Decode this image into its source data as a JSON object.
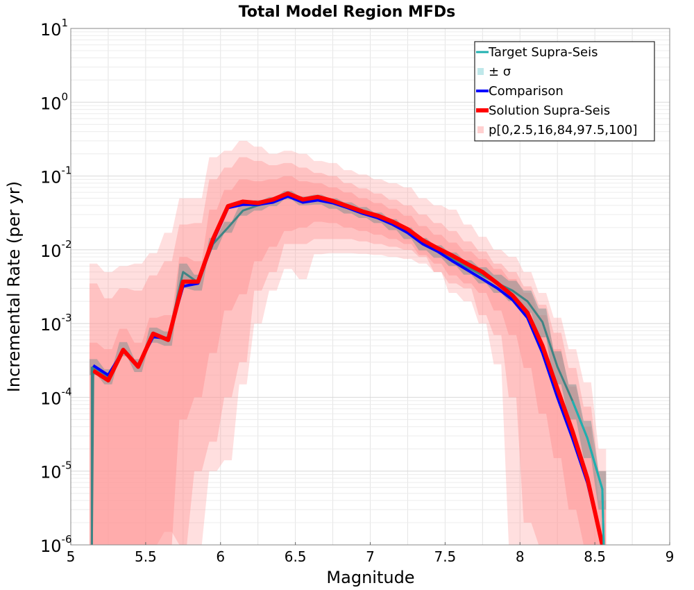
{
  "chart_data": {
    "type": "line",
    "title": "Total Model Region MFDs",
    "xlabel": "Magnitude",
    "ylabel": "Incremental Rate (per yr)",
    "xlim": [
      5,
      9
    ],
    "ylim": [
      1e-06,
      10
    ],
    "yscale": "log",
    "grid": true,
    "legend_position": "top-right",
    "x_ticks": [
      5,
      5.5,
      6,
      6.5,
      7,
      7.5,
      8,
      8.5,
      9
    ],
    "x_tick_labels": [
      "5",
      "5.5",
      "6",
      "6.5",
      "7",
      "7.5",
      "8",
      "8.5",
      "9"
    ],
    "y_ticks": [
      {
        "value": 1e-06,
        "base": "10",
        "exp": "-6"
      },
      {
        "value": 1e-05,
        "base": "10",
        "exp": "-5"
      },
      {
        "value": 0.0001,
        "base": "10",
        "exp": "-4"
      },
      {
        "value": 0.001,
        "base": "10",
        "exp": "-3"
      },
      {
        "value": 0.01,
        "base": "10",
        "exp": "-2"
      },
      {
        "value": 0.1,
        "base": "10",
        "exp": "-1"
      },
      {
        "value": 1,
        "base": "10",
        "exp": "0"
      },
      {
        "value": 10,
        "base": "10",
        "exp": "1"
      }
    ],
    "x": [
      5.15,
      5.25,
      5.35,
      5.45,
      5.55,
      5.65,
      5.75,
      5.85,
      5.95,
      6.05,
      6.15,
      6.25,
      6.35,
      6.45,
      6.55,
      6.65,
      6.75,
      6.85,
      6.95,
      7.05,
      7.15,
      7.25,
      7.35,
      7.45,
      7.55,
      7.65,
      7.75,
      7.85,
      7.95,
      8.05,
      8.15,
      8.25,
      8.35,
      8.45,
      8.55
    ],
    "series": [
      {
        "name": "Target Supra-Seis",
        "color": "#1fb0b0",
        "width": 3,
        "values": [
          0.00026,
          0.00019,
          0.00045,
          0.00027,
          0.0007,
          0.00063,
          0.005,
          0.0036,
          0.012,
          0.02,
          0.034,
          0.04,
          0.045,
          0.055,
          0.046,
          0.048,
          0.043,
          0.037,
          0.032,
          0.027,
          0.022,
          0.017,
          0.012,
          0.0095,
          0.0075,
          0.0058,
          0.0045,
          0.0035,
          0.0028,
          0.002,
          0.00105,
          0.00026,
          9e-05,
          2.8e-05,
          5.7e-06
        ],
        "drop_start_to": 1e-06,
        "drop_end_to": 1e-06
      },
      {
        "name": "Comparison",
        "color": "#0000ff",
        "width": 4,
        "values": [
          0.00027,
          0.0002,
          0.00043,
          0.00027,
          0.00066,
          0.00063,
          0.0032,
          0.0035,
          0.013,
          0.037,
          0.041,
          0.041,
          0.044,
          0.053,
          0.044,
          0.047,
          0.043,
          0.037,
          0.031,
          0.027,
          0.022,
          0.017,
          0.012,
          0.0095,
          0.007,
          0.0053,
          0.004,
          0.003,
          0.0021,
          0.0012,
          0.0004,
          0.0001,
          2.8e-05,
          7e-06,
          1e-06
        ]
      },
      {
        "name": "Solution Supra-Seis",
        "color": "#ff0000",
        "width": 6,
        "values": [
          0.00023,
          0.00017,
          0.00044,
          0.00026,
          0.00073,
          0.0006,
          0.0037,
          0.0037,
          0.014,
          0.039,
          0.045,
          0.043,
          0.048,
          0.058,
          0.048,
          0.052,
          0.046,
          0.039,
          0.033,
          0.029,
          0.024,
          0.019,
          0.0135,
          0.0105,
          0.0083,
          0.0064,
          0.005,
          0.0035,
          0.0024,
          0.0014,
          0.0005,
          0.00013,
          3.5e-05,
          8e-06,
          1e-06
        ]
      }
    ],
    "sigma_band": {
      "name": "± σ",
      "color": "#bfe8ea",
      "lower": [
        0.0002,
        0.00015,
        0.00036,
        0.00022,
        0.00055,
        0.0005,
        0.003,
        0.0028,
        0.01,
        0.017,
        0.029,
        0.034,
        0.039,
        0.048,
        0.04,
        0.041,
        0.036,
        0.031,
        0.027,
        0.023,
        0.0185,
        0.014,
        0.0098,
        0.0078,
        0.006,
        0.0046,
        0.0035,
        0.0026,
        0.002,
        0.0014,
        0.00065,
        0.00015,
        5e-05,
        1.5e-05,
        3e-06
      ],
      "upper": [
        0.00033,
        0.00024,
        0.00056,
        0.00033,
        0.00088,
        0.00078,
        0.0065,
        0.0046,
        0.0145,
        0.024,
        0.04,
        0.047,
        0.052,
        0.063,
        0.053,
        0.056,
        0.05,
        0.044,
        0.038,
        0.032,
        0.026,
        0.02,
        0.0145,
        0.0115,
        0.0092,
        0.0072,
        0.0058,
        0.0046,
        0.0038,
        0.0028,
        0.0016,
        0.00042,
        0.00015,
        4.8e-05,
        1e-05
      ]
    },
    "percentile_bands": {
      "name": "p[0,2.5,16,84,97.5,100]",
      "color": "#ff9a9a",
      "bands": [
        {
          "label": "p0-p100",
          "opacity": 0.32,
          "lower": [
            1e-06,
            1e-06,
            1e-06,
            1e-06,
            1e-06,
            1e-06,
            1e-06,
            1e-06,
            1e-05,
            1.4e-05,
            0.00015,
            0.001,
            0.0028,
            0.0055,
            0.004,
            0.0087,
            0.009,
            0.009,
            0.0088,
            0.0085,
            0.008,
            0.0075,
            0.0065,
            0.005,
            0.0026,
            0.002,
            0.001,
            0.00028,
            1e-06,
            1e-06,
            1e-06,
            1e-06,
            1e-06,
            1e-06,
            1e-06
          ],
          "upper": [
            0.0065,
            0.005,
            0.006,
            0.0065,
            0.009,
            0.017,
            0.05,
            0.05,
            0.18,
            0.22,
            0.3,
            0.25,
            0.2,
            0.22,
            0.2,
            0.16,
            0.15,
            0.12,
            0.105,
            0.09,
            0.08,
            0.07,
            0.05,
            0.04,
            0.035,
            0.022,
            0.015,
            0.01,
            0.008,
            0.005,
            0.0026,
            0.0012,
            0.00045,
            0.00016,
            2e-05
          ]
        },
        {
          "label": "p2.5-p97.5",
          "opacity": 0.42,
          "lower": [
            1e-06,
            1e-06,
            1e-06,
            1e-06,
            1e-06,
            1.5e-06,
            1e-06,
            1e-05,
            2.5e-05,
            0.0001,
            0.0003,
            0.0028,
            0.005,
            0.012,
            0.012,
            0.014,
            0.014,
            0.014,
            0.013,
            0.012,
            0.011,
            0.01,
            0.008,
            0.005,
            0.0035,
            0.003,
            0.0013,
            0.0007,
            0.0001,
            2e-06,
            1e-06,
            1e-06,
            1e-06,
            1e-06,
            1e-06
          ],
          "upper": [
            0.0035,
            0.0022,
            0.003,
            0.0028,
            0.0045,
            0.007,
            0.022,
            0.023,
            0.09,
            0.13,
            0.18,
            0.16,
            0.14,
            0.15,
            0.13,
            0.11,
            0.1,
            0.08,
            0.068,
            0.058,
            0.048,
            0.04,
            0.03,
            0.023,
            0.018,
            0.013,
            0.0095,
            0.0065,
            0.005,
            0.0032,
            0.0018,
            0.00075,
            0.00025,
            7.5e-05,
            1e-05
          ]
        },
        {
          "label": "p16-p84",
          "opacity": 0.55,
          "lower": [
            1e-06,
            1e-06,
            1e-06,
            1e-06,
            1e-06,
            1e-06,
            5e-05,
            0.0001,
            0.0004,
            0.0015,
            0.0025,
            0.007,
            0.011,
            0.018,
            0.02,
            0.024,
            0.023,
            0.02,
            0.018,
            0.016,
            0.014,
            0.012,
            0.0085,
            0.0065,
            0.0045,
            0.0035,
            0.0026,
            0.0015,
            0.0007,
            0.00025,
            6e-05,
            1.5e-05,
            3e-06,
            1e-06,
            1e-06
          ],
          "upper": [
            0.00055,
            0.00045,
            0.00085,
            0.00055,
            0.0012,
            0.0013,
            0.008,
            0.007,
            0.035,
            0.065,
            0.09,
            0.085,
            0.09,
            0.1,
            0.085,
            0.08,
            0.07,
            0.06,
            0.05,
            0.043,
            0.036,
            0.029,
            0.021,
            0.016,
            0.0125,
            0.0095,
            0.0075,
            0.0055,
            0.004,
            0.0026,
            0.0013,
            0.00045,
            0.00014,
            4e-05,
            4e-06
          ]
        }
      ]
    }
  },
  "legend": {
    "items": [
      {
        "label": "Target Supra-Seis",
        "kind": "line",
        "color": "#1fb0b0",
        "width": 3
      },
      {
        "label": "± σ",
        "kind": "patch",
        "color": "#bfe8ea"
      },
      {
        "label": "Comparison",
        "kind": "line",
        "color": "#0000ff",
        "width": 4
      },
      {
        "label": "Solution Supra-Seis",
        "kind": "line",
        "color": "#ff0000",
        "width": 6
      },
      {
        "label": "p[0,2.5,16,84,97.5,100]",
        "kind": "patch",
        "color": "#ffd0d0"
      }
    ]
  }
}
